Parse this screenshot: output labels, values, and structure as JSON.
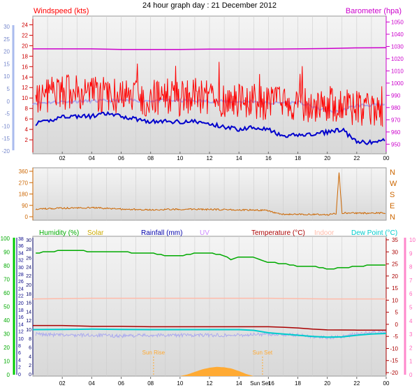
{
  "title": "24 hour graph day : 21 December 2012",
  "colors": {
    "wind": "#ff0000",
    "gust": "#ff0000",
    "avgwind": "#0000cc",
    "baro": "#cc00cc",
    "direction": "#cc6600",
    "humidity": "#00aa00",
    "solar": "#ccaa00",
    "rainfall": "#0000aa",
    "uv": "#cc88ff",
    "temperature": "#aa0000",
    "indoor": "#ffbbaa",
    "dewpoint": "#00cccc",
    "windchill": "#aaaaee",
    "sun": "#ffaa33"
  },
  "chart_data": [
    {
      "type": "line",
      "title": "24 hour graph day : 21 December 2012",
      "labels": {
        "left": "Windspeed (kts)",
        "right": "Barometer (hpa)"
      },
      "x_ticks": [
        "02",
        "04",
        "06",
        "08",
        "10",
        "12",
        "14",
        "16",
        "18",
        "20",
        "22",
        "00"
      ],
      "y_left_ticks": [
        "30",
        "25",
        "20",
        "15",
        "10",
        "5",
        "0",
        "-5",
        "-10",
        "-15",
        "-20"
      ],
      "y_inner_ticks": [
        "24",
        "22",
        "20",
        "18",
        "16",
        "14",
        "12",
        "10",
        "8",
        "6",
        "4",
        "2"
      ],
      "y_right_ticks": [
        "1050",
        "1040",
        "1030",
        "1020",
        "1010",
        "1000",
        "990",
        "980",
        "970",
        "960",
        "950"
      ],
      "ylim_wind": [
        0,
        25
      ],
      "ylim_baro": [
        945,
        1052
      ],
      "series": [
        {
          "name": "Barometer (hpa)",
          "y_axis": "right",
          "hours": [
            0,
            2,
            4,
            6,
            8,
            10,
            12,
            14,
            16,
            18,
            20,
            22,
            24
          ],
          "values": [
            1028,
            1028,
            1028,
            1027.5,
            1027.5,
            1027.5,
            1027.8,
            1027.8,
            1027.8,
            1028,
            1028.3,
            1028.8,
            1029
          ]
        },
        {
          "y_axis": "left",
          "style": "band",
          "hours": [
            0,
            2,
            4,
            6,
            8,
            10,
            12,
            14,
            16,
            18,
            20,
            22,
            24
          ],
          "values": [
            10,
            11,
            11,
            10,
            10,
            10,
            10,
            9.5,
            9,
            9,
            8.5,
            8,
            7
          ],
          "spread": 3.5
        },
        {
          "y_axis": "left",
          "hours": [
            0,
            1,
            2,
            3,
            4,
            5,
            6,
            7,
            8,
            9,
            10,
            11,
            12,
            13,
            14,
            15,
            16,
            17,
            18,
            19,
            20,
            21,
            22,
            23,
            24
          ],
          "values": [
            5,
            5.5,
            6.5,
            6.5,
            6.5,
            7,
            6.5,
            6,
            5.5,
            5.5,
            5.5,
            5.5,
            5,
            4.5,
            4,
            4.5,
            4,
            2.5,
            3,
            3,
            3.5,
            4,
            1.5,
            1.5,
            2
          ]
        },
        {
          "y_axis": "left",
          "style": "light",
          "hours": [
            0,
            2,
            4,
            6,
            8,
            10,
            12,
            14,
            15,
            16,
            18,
            20,
            20.5,
            21,
            22,
            24
          ],
          "values": [
            9,
            9.3,
            9.4,
            9.5,
            9.5,
            9.5,
            9.4,
            9.3,
            9.4,
            9,
            9.2,
            7.5,
            7.3,
            7.6,
            8.6,
            8.7
          ]
        }
      ]
    },
    {
      "type": "line",
      "y_ticks": [
        "360",
        "270",
        "180",
        "90",
        "0"
      ],
      "compass": [
        "N",
        "W",
        "S",
        "E",
        "N"
      ],
      "ylim": [
        0,
        360
      ],
      "series": [
        {
          "hours": [
            0,
            2,
            4,
            6,
            8,
            10,
            12,
            14,
            16,
            16.5,
            17,
            19,
            20,
            20.6,
            20.8,
            21,
            22,
            24
          ],
          "values": [
            60,
            68,
            72,
            60,
            55,
            60,
            58,
            55,
            50,
            30,
            20,
            18,
            15,
            25,
            350,
            30,
            28,
            30
          ]
        }
      ]
    },
    {
      "type": "line",
      "labels": {
        "humidity": "Humidity (%)",
        "solar": "Solar",
        "rainfall": "Rainfall (mm)",
        "uv": "UV",
        "temperature": "Temperature (°C)",
        "indoor": "Indoor",
        "dewpoint": "Dew Point (°C)"
      },
      "axis_left_1": [
        "100",
        "90",
        "80",
        "70",
        "60",
        "50",
        "40",
        "30",
        "20",
        "10",
        "0"
      ],
      "axis_left_2": [
        "38",
        "36",
        "34",
        "32",
        "30",
        "28",
        "26",
        "24",
        "22",
        "20",
        "18",
        "16",
        "14",
        "12",
        "10",
        "8",
        "6",
        "4",
        "2",
        "0"
      ],
      "axis_left_3": [
        "30",
        "28",
        "26",
        "24",
        "22",
        "20",
        "18",
        "16",
        "14",
        "12",
        "10",
        "8",
        "6",
        "4",
        "2",
        "0"
      ],
      "axis_right_1": [
        "35",
        "30",
        "25",
        "20",
        "15",
        "10",
        "5",
        "0",
        "-5",
        "-10",
        "-15",
        "-20"
      ],
      "axis_right_2": [
        "10",
        "9",
        "8",
        "7",
        "6",
        "5",
        "4",
        "3",
        "2",
        "1",
        "0"
      ],
      "markers": [
        {
          "label": "Sun Rise",
          "hour": 8.2
        },
        {
          "label": "Sun Set",
          "hour": 15.6
        }
      ],
      "x_ticks": [
        "02",
        "04",
        "06",
        "08",
        "10",
        "12",
        "14",
        "16",
        "18",
        "20",
        "22",
        "00"
      ],
      "x_tick_special": "Sun Set",
      "ylim_humidity": [
        0,
        100
      ],
      "ylim_temp": [
        -20,
        35
      ],
      "series": [
        {
          "name": "Humidity (%)",
          "axis": "humidity",
          "hours": [
            0,
            1,
            2,
            3,
            4,
            5,
            6,
            7,
            8,
            9,
            10,
            11,
            12,
            13,
            13.5,
            14,
            15,
            16,
            17,
            18,
            19,
            20,
            21,
            22,
            23,
            24
          ],
          "values": [
            90,
            91,
            92,
            92,
            91,
            91,
            91,
            90,
            90,
            88,
            88,
            90,
            90,
            88,
            85,
            87,
            87,
            83,
            82,
            80,
            80,
            78,
            79,
            80,
            81,
            81
          ]
        },
        {
          "name": "Temperature (°C)",
          "axis": "temp",
          "hours": [
            0,
            2,
            4,
            6,
            8,
            10,
            12,
            14,
            16,
            17,
            18,
            19,
            20,
            22,
            24
          ],
          "values": [
            -0.5,
            -0.5,
            -0.8,
            -0.8,
            -1,
            -1,
            -1,
            -1,
            -1,
            -1.2,
            -1.5,
            -2,
            -2.3,
            -2.4,
            -2.4
          ]
        },
        {
          "name": "Dew Point (°C)",
          "axis": "temp",
          "hours": [
            0,
            2,
            4,
            6,
            8,
            10,
            12,
            14,
            15,
            16,
            17,
            18,
            19,
            20,
            21,
            22,
            23,
            24
          ],
          "values": [
            -2.2,
            -2.1,
            -2,
            -2.1,
            -2.2,
            -2.2,
            -2.2,
            -2.2,
            -2.5,
            -3.5,
            -4,
            -4.5,
            -5,
            -5.3,
            -5.2,
            -4.5,
            -4,
            -3.8
          ]
        },
        {
          "axis": "temp",
          "style": "light",
          "hours": [
            0,
            2,
            4,
            6,
            8,
            10,
            12,
            14,
            16,
            18,
            20,
            21,
            22,
            24
          ],
          "values": [
            -4,
            -4.5,
            -4.5,
            -4.8,
            -4.5,
            -4.5,
            -4.5,
            -4.5,
            -4,
            -4.5,
            -5.5,
            -5,
            -4,
            -3
          ]
        },
        {
          "name": "Indoor",
          "axis": "temp",
          "hours": [
            0,
            4,
            8,
            12,
            16,
            20,
            24
          ],
          "values": [
            10.5,
            10.8,
            10.8,
            10.8,
            10.8,
            10.5,
            10.5
          ]
        },
        {
          "name": "Solar",
          "axis": "solar",
          "style": "area",
          "hours": [
            10,
            10.5,
            11,
            11.5,
            12,
            12.5,
            13,
            13.5,
            14,
            14.5,
            15
          ],
          "values": [
            0,
            0.4,
            1,
            1.6,
            2,
            2.2,
            2.1,
            1.8,
            1.2,
            0.5,
            0
          ]
        }
      ]
    }
  ]
}
